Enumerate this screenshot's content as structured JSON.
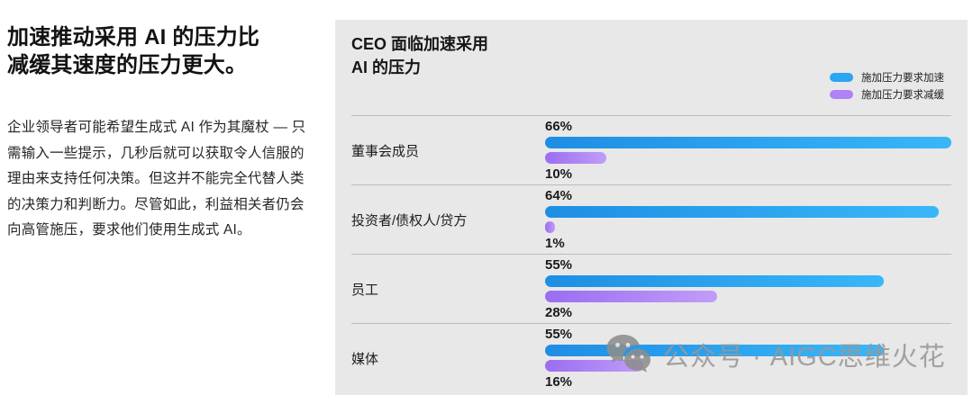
{
  "left_panel": {
    "heading": "加速推动采用 AI 的压力比\n减缓其速度的压力更大。",
    "body": "企业领导者可能希望生成式 AI 作为其魔杖 — 只需输入一些提示，几秒后就可以获取令人信服的理由来支持任何决策。但这并不能完全代替人类的决策力和判断力。尽管如此，利益相关者仍会向高管施压，要求他们使用生成式 AI。"
  },
  "chart": {
    "title": "CEO 面临加速采用\nAI 的压力",
    "legend": [
      {
        "label": "施加压力要求加速",
        "color": "#2aa6f2"
      },
      {
        "label": "施加压力要求减缓",
        "color": "#af82f5"
      }
    ],
    "panel_background": "#e8e8e8",
    "divider_color": "#bdbdbd"
  },
  "chart_data": {
    "type": "bar",
    "orientation": "horizontal",
    "title": "CEO 面临加速采用 AI 的压力",
    "categories": [
      "董事会成员",
      "投资者/债权人/贷方",
      "员工",
      "媒体"
    ],
    "series": [
      {
        "name": "施加压力要求加速",
        "values": [
          66,
          64,
          55,
          55
        ],
        "color_start": "#1e8ee4",
        "color_end": "#38b7f9"
      },
      {
        "name": "施加压力要求减缓",
        "values": [
          10,
          1,
          28,
          16
        ],
        "color_start": "#9b6df1",
        "color_end": "#c19df8"
      }
    ],
    "value_suffix": "%",
    "xlim": [
      0,
      66
    ],
    "grid": false,
    "legend_position": "top-right"
  },
  "watermark": {
    "icon": "wechat-icon",
    "text": "公众号 · AIGC思维火花",
    "color": "#989898"
  }
}
